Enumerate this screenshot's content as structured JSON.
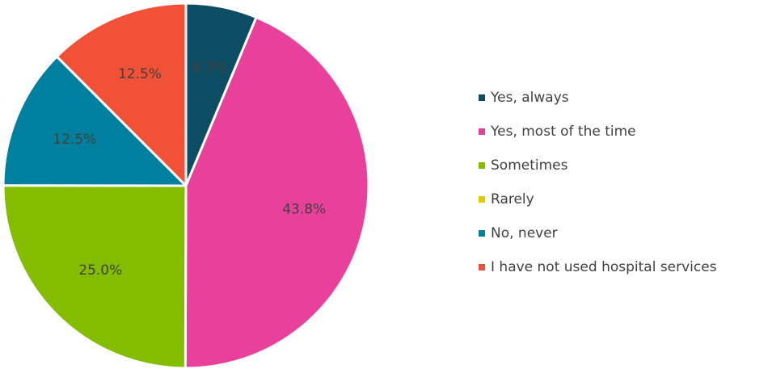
{
  "chart_data": {
    "type": "pie",
    "title": "",
    "categories": [
      "Yes, always",
      "Yes, most of the time",
      "Sometimes",
      "Rarely",
      "No, never",
      "I have not used hospital services"
    ],
    "values": [
      6.3,
      43.8,
      25.0,
      0,
      12.5,
      12.5
    ],
    "data_labels": [
      "6.3%",
      "43.8%",
      "25.0%",
      "",
      "12.5%",
      "12.5%"
    ],
    "colors": [
      "#0d4d63",
      "#e8409b",
      "#84bd00",
      "#e6c800",
      "#00809f",
      "#f15136"
    ],
    "legend": {
      "placement": "right",
      "entries": [
        "Yes, always",
        "Yes, most of the time",
        "Sometimes",
        "Rarely",
        "No, never",
        "I have not used hospital services"
      ]
    }
  }
}
